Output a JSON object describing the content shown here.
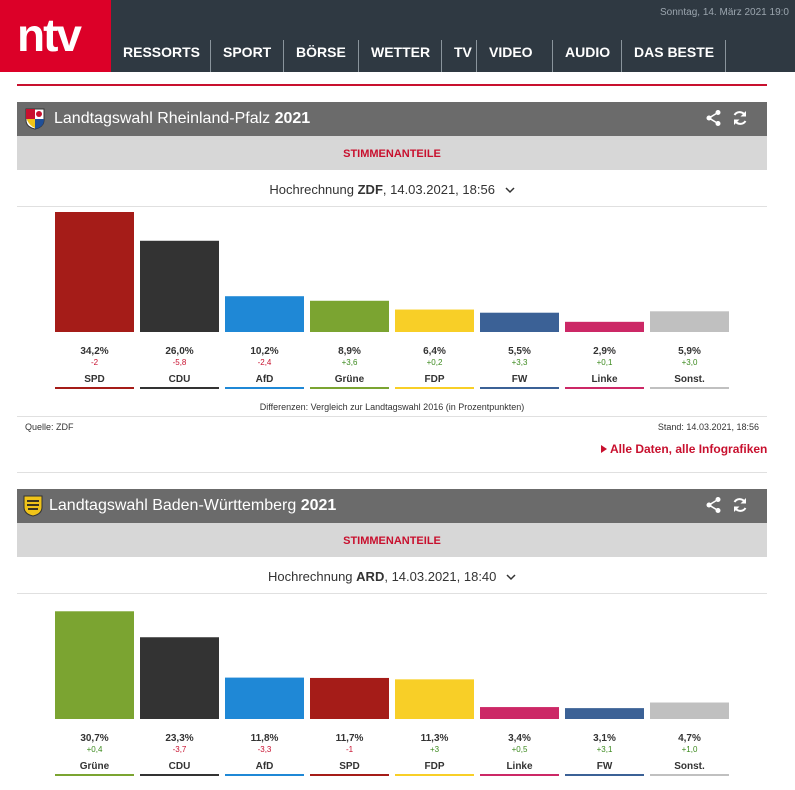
{
  "header": {
    "logo_text": "ntv",
    "date": "Sonntag, 14. März 2021 19:0",
    "nav": [
      "RESSORTS",
      "SPORT",
      "BÖRSE",
      "WETTER",
      "TV",
      "VIDEO",
      "AUDIO",
      "DAS BESTE"
    ]
  },
  "colors": {
    "brand": "#dc0028",
    "header_bg": "#2f3942",
    "SPD": "#a51c18",
    "CDU": "#333333",
    "AfD": "#1f88d6",
    "Grüne": "#7ba431",
    "FDP": "#f8cf27",
    "FW": "#3b6196",
    "Linke": "#cc2866",
    "Sonst.": "#c0c0c0",
    "positive": "#3c8a1e",
    "negative": "#c8102e"
  },
  "icons": [
    "share-icon",
    "refresh-icon",
    "chevron-down-icon",
    "triangle-right-icon",
    "rlp-crest-icon",
    "bw-crest-icon"
  ],
  "rlp": {
    "title": "Landtagswahl Rheinland-Pfalz",
    "year": "2021",
    "tab": "STIMMENANTEILE",
    "proj_prefix": "Hochrechnung",
    "proj_source": "ZDF",
    "proj_time": ", 14.03.2021, 18:56",
    "note": "Differenzen: Vergleich zur Landtagswahl 2016 (in Prozentpunkten)",
    "source": "Quelle: ZDF",
    "stand": "Stand: 14.03.2021, 18:56",
    "link": "Alle Daten, alle Infografiken"
  },
  "bw": {
    "title": "Landtagswahl Baden-Württemberg",
    "year": "2021",
    "tab": "STIMMENANTEILE",
    "proj_prefix": "Hochrechnung",
    "proj_source": "ARD",
    "proj_time": ", 14.03.2021, 18:40"
  },
  "chart_data": [
    {
      "type": "bar",
      "categories": [
        "SPD",
        "CDU",
        "AfD",
        "Grüne",
        "FDP",
        "FW",
        "Linke",
        "Sonst."
      ],
      "values": [
        34.2,
        26.0,
        10.2,
        8.9,
        6.4,
        5.5,
        2.9,
        5.9
      ],
      "value_labels": [
        "34,2%",
        "26,0%",
        "10,2%",
        "8,9%",
        "6,4%",
        "5,5%",
        "2,9%",
        "5,9%"
      ],
      "diffs": [
        "-2",
        "-5,8",
        "-2,4",
        "+3,6",
        "+0,2",
        "+3,3",
        "+0,1",
        "+3,0"
      ]
    },
    {
      "type": "bar",
      "categories": [
        "Grüne",
        "CDU",
        "AfD",
        "SPD",
        "FDP",
        "Linke",
        "FW",
        "Sonst."
      ],
      "values": [
        30.7,
        23.3,
        11.8,
        11.7,
        11.3,
        3.4,
        3.1,
        4.7
      ],
      "value_labels": [
        "30,7%",
        "23,3%",
        "11,8%",
        "11,7%",
        "11,3%",
        "3,4%",
        "3,1%",
        "4,7%"
      ],
      "diffs": [
        "+0,4",
        "-3,7",
        "-3,3",
        "-1",
        "+3",
        "+0,5",
        "+3,1",
        "+1,0"
      ]
    }
  ]
}
